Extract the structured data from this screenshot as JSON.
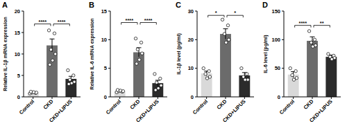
{
  "chart_data": [
    {
      "type": "bar",
      "title": "A",
      "y_label": "Relative IL-1β mRNA expression",
      "categories": [
        "Control",
        "CKD",
        "CKD+LIPUS"
      ],
      "values": [
        1.0,
        12.0,
        4.2
      ],
      "errors": [
        0.1,
        1.5,
        0.6
      ],
      "points": [
        [
          0.8,
          0.9,
          1.0,
          1.0,
          1.1,
          1.2
        ],
        [
          15.5,
          14.8,
          11.0,
          10.0,
          8.5,
          7.5
        ],
        [
          6.2,
          5.0,
          4.0,
          3.5,
          3.2,
          3.0
        ]
      ],
      "colors": [
        "#d9d9d9",
        "#6b6b6b",
        "#2b2b2b"
      ],
      "ylim": [
        0,
        20
      ],
      "yticks": [
        0,
        5,
        10,
        15,
        20
      ],
      "annotations": [
        {
          "from": 0,
          "to": 1,
          "y": 17,
          "text": "****"
        },
        {
          "from": 1,
          "to": 2,
          "y": 17,
          "text": "****"
        }
      ]
    },
    {
      "type": "bar",
      "title": "B",
      "y_label": "Relative IL-6 mRNA expression",
      "categories": [
        "Control",
        "CKD",
        "CKD+LIPUS"
      ],
      "values": [
        1.0,
        7.8,
        2.4
      ],
      "errors": [
        0.1,
        0.8,
        0.5
      ],
      "points": [
        [
          0.8,
          0.9,
          1.0,
          1.0,
          1.1,
          1.2
        ],
        [
          10.2,
          9.5,
          8.3,
          7.6,
          6.5,
          5.8
        ],
        [
          4.0,
          3.2,
          2.5,
          2.0,
          1.5,
          1.2
        ]
      ],
      "colors": [
        "#d9d9d9",
        "#6b6b6b",
        "#2b2b2b"
      ],
      "ylim": [
        0,
        15
      ],
      "yticks": [
        0,
        5,
        10,
        15
      ],
      "annotations": [
        {
          "from": 0,
          "to": 1,
          "y": 13,
          "text": "****"
        },
        {
          "from": 1,
          "to": 2,
          "y": 13,
          "text": "****"
        }
      ]
    },
    {
      "type": "bar",
      "title": "C",
      "y_label": "IL-1β level (pg/ml)",
      "categories": [
        "Control",
        "CKD",
        "CKD+LIPUS"
      ],
      "values": [
        8.2,
        22.0,
        7.5
      ],
      "errors": [
        0.8,
        1.8,
        1.0
      ],
      "points": [
        [
          10.0,
          9.0,
          8.0,
          7.0,
          6.5
        ],
        [
          27.0,
          25.0,
          22.0,
          20.0,
          19.0
        ],
        [
          10.0,
          8.0,
          7.0,
          6.0,
          6.0
        ]
      ],
      "colors": [
        "#d9d9d9",
        "#6b6b6b",
        "#2b2b2b"
      ],
      "ylim": [
        0,
        30
      ],
      "yticks": [
        0,
        10,
        20,
        30
      ],
      "annotations": [
        {
          "from": 0,
          "to": 1,
          "y": 28.5,
          "text": "*"
        },
        {
          "from": 1,
          "to": 2,
          "y": 28.5,
          "text": "*"
        }
      ]
    },
    {
      "type": "bar",
      "title": "D",
      "y_label": "IL-6 level (pg/ml)",
      "categories": [
        "Control",
        "CKD",
        "CKD+LIPUS"
      ],
      "values": [
        39,
        98,
        70
      ],
      "errors": [
        5,
        7,
        3
      ],
      "points": [
        [
          50,
          45,
          38,
          33,
          30
        ],
        [
          115,
          100,
          95,
          90,
          88
        ],
        [
          75,
          72,
          70,
          68,
          66
        ]
      ],
      "colors": [
        "#d9d9d9",
        "#6b6b6b",
        "#2b2b2b"
      ],
      "ylim": [
        0,
        150
      ],
      "yticks": [
        0,
        50,
        100,
        150
      ],
      "annotations": [
        {
          "from": 0,
          "to": 1,
          "y": 125,
          "text": "****"
        },
        {
          "from": 1,
          "to": 2,
          "y": 125,
          "text": "**"
        }
      ]
    }
  ]
}
